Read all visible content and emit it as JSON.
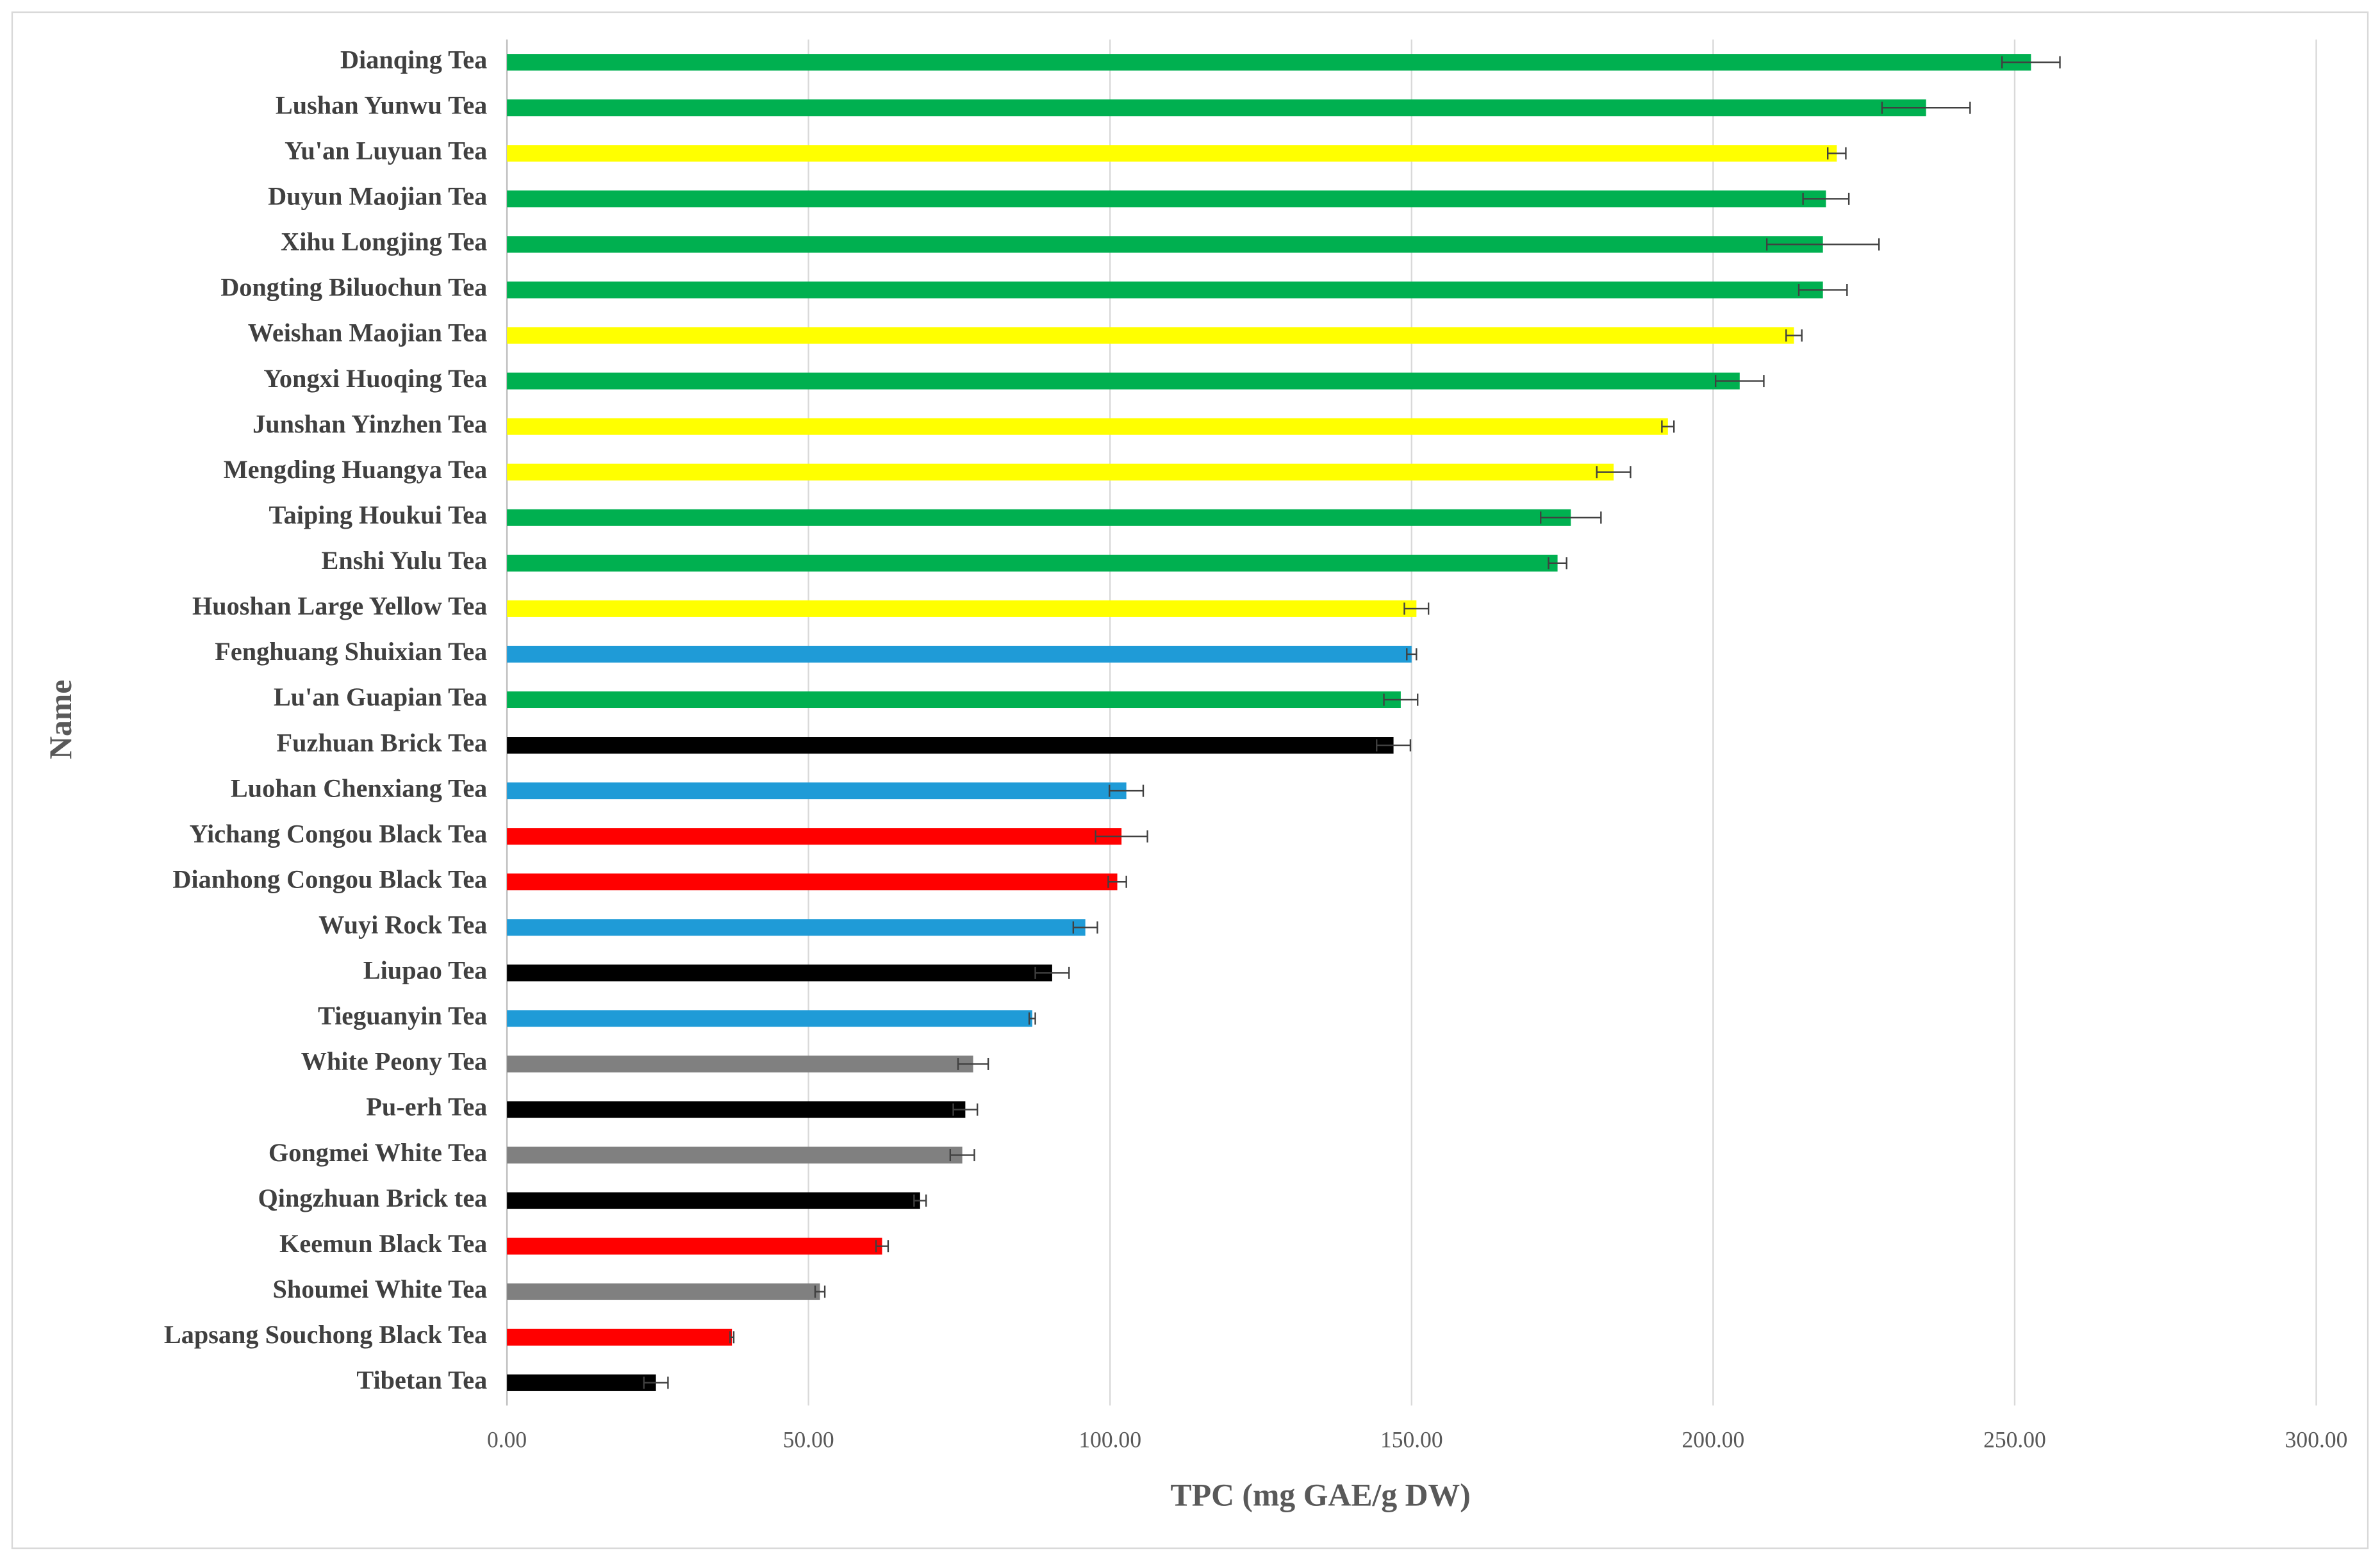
{
  "chart_data": {
    "type": "bar",
    "orientation": "horizontal",
    "x_label": "TPC (mg GAE/g DW)",
    "y_label": "Name",
    "categories": [
      "Dianqing Tea",
      "Lushan Yunwu Tea",
      "Yu'an Luyuan Tea",
      "Duyun Maojian Tea",
      "Xihu Longjing Tea",
      "Dongting Biluochun Tea",
      "Weishan Maojian Tea",
      "Yongxi Huoqing Tea",
      "Junshan Yinzhen Tea",
      "Mengding Huangya Tea",
      "Taiping Houkui Tea",
      "Enshi Yulu Tea",
      "Huoshan Large Yellow Tea",
      "Fenghuang Shuixian Tea",
      "Lu'an Guapian Tea",
      "Fuzhuan Brick Tea",
      "Luohan Chenxiang Tea",
      "Yichang Congou Black Tea",
      "Dianhong Congou Black Tea",
      "Wuyi Rock Tea",
      "Liupao Tea",
      "Tieguanyin Tea",
      "White Peony Tea",
      "Pu-erh Tea",
      "Gongmei White Tea",
      "Qingzhuan Brick tea",
      "Keemun Black Tea",
      "Shoumei White Tea",
      "Lapsang Souchong Black Tea",
      "Tibetan Tea"
    ],
    "values": [
      252.7,
      235.3,
      220.5,
      218.7,
      218.2,
      218.2,
      213.4,
      204.4,
      192.5,
      183.5,
      176.4,
      174.2,
      150.8,
      150.0,
      148.2,
      147.0,
      102.7,
      101.9,
      101.2,
      95.9,
      90.4,
      87.1,
      77.3,
      76.0,
      75.5,
      68.5,
      62.2,
      51.9,
      37.3,
      24.7
    ],
    "errors": [
      4.8,
      7.3,
      1.5,
      3.8,
      9.3,
      4.0,
      1.3,
      4.0,
      1.0,
      2.8,
      5.0,
      1.5,
      2.0,
      0.8,
      2.8,
      2.8,
      2.8,
      4.3,
      1.5,
      2.0,
      2.8,
      0.5,
      2.5,
      2.0,
      2.0,
      1.0,
      1.0,
      0.8,
      0.3,
      2.0
    ],
    "colors": [
      "#00b050",
      "#00b050",
      "#ffff00",
      "#00b050",
      "#00b050",
      "#00b050",
      "#ffff00",
      "#00b050",
      "#ffff00",
      "#ffff00",
      "#00b050",
      "#00b050",
      "#ffff00",
      "#1f9bd7",
      "#00b050",
      "#000000",
      "#1f9bd7",
      "#ff0000",
      "#ff0000",
      "#1f9bd7",
      "#000000",
      "#1f9bd7",
      "#808080",
      "#000000",
      "#808080",
      "#000000",
      "#ff0000",
      "#808080",
      "#ff0000",
      "#000000"
    ],
    "xlim": [
      0,
      300
    ],
    "xticks": [
      {
        "value": 0,
        "label": "0.00"
      },
      {
        "value": 50,
        "label": "50.00"
      },
      {
        "value": 100,
        "label": "100.00"
      },
      {
        "value": 150,
        "label": "150.00"
      },
      {
        "value": 200,
        "label": "200.00"
      },
      {
        "value": 250,
        "label": "250.00"
      },
      {
        "value": 300,
        "label": "300.00"
      }
    ],
    "grid": true
  }
}
